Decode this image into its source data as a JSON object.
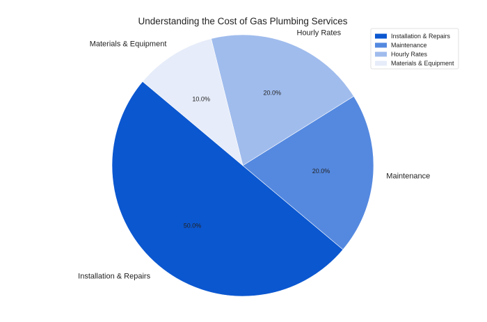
{
  "chart_data": {
    "type": "pie",
    "title": "Understanding the Cost of Gas Plumbing Services",
    "start_angle_deg": 140,
    "direction": "counterclockwise",
    "legend_position": "top-right",
    "slices": [
      {
        "label": "Installation & Repairs",
        "value": 50.0,
        "pct_label": "50.0%",
        "color": "#0b57d0"
      },
      {
        "label": "Maintenance",
        "value": 20.0,
        "pct_label": "20.0%",
        "color": "#5589e0"
      },
      {
        "label": "Hourly Rates",
        "value": 20.0,
        "pct_label": "20.0%",
        "color": "#a0bced"
      },
      {
        "label": "Materials & Equipment",
        "value": 10.0,
        "pct_label": "10.0%",
        "color": "#e6ecf9"
      }
    ]
  }
}
